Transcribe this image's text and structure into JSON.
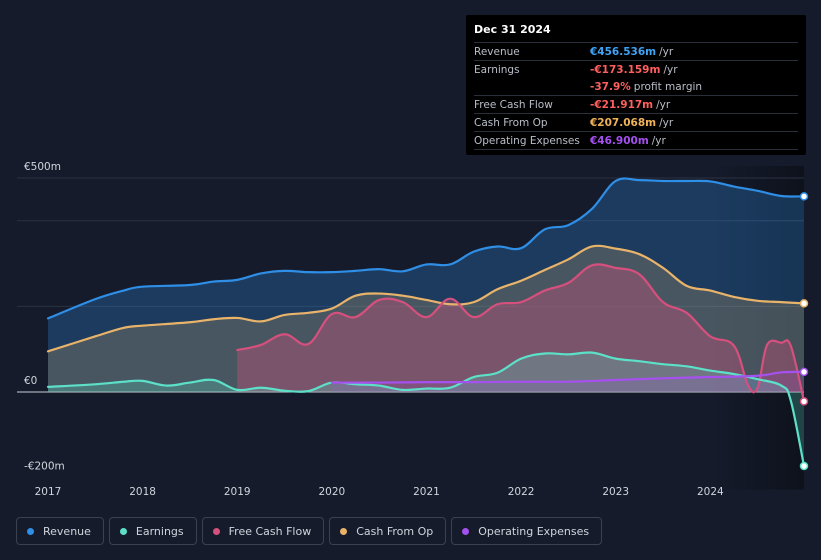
{
  "colors": {
    "revenue": "#2f8ee6",
    "earnings": "#5de0c8",
    "fcf": "#d6507e",
    "cfo": "#e9b46a",
    "opex": "#a550ef",
    "negative": "#ff5f5f"
  },
  "tooltip": {
    "date": "Dec 31 2024",
    "rows": [
      {
        "label": "Revenue",
        "value": "€456.536m",
        "unit": "/yr",
        "color": "#3fa3f5"
      },
      {
        "label": "Earnings",
        "value": "-€173.159m",
        "unit": "/yr",
        "color": "#ff5f5f"
      },
      {
        "label": "",
        "value": "-37.9%",
        "unit": "profit margin",
        "color": "#ff5f5f"
      },
      {
        "label": "Free Cash Flow",
        "value": "-€21.917m",
        "unit": "/yr",
        "color": "#ff5f5f"
      },
      {
        "label": "Cash From Op",
        "value": "€207.068m",
        "unit": "/yr",
        "color": "#f0b35a"
      },
      {
        "label": "Operating Expenses",
        "value": "€46.900m",
        "unit": "/yr",
        "color": "#a550ef"
      }
    ]
  },
  "legend": [
    {
      "label": "Revenue",
      "color": "#2f8ee6"
    },
    {
      "label": "Earnings",
      "color": "#5de0c8"
    },
    {
      "label": "Free Cash Flow",
      "color": "#d6507e"
    },
    {
      "label": "Cash From Op",
      "color": "#e9b46a"
    },
    {
      "label": "Operating Expenses",
      "color": "#a550ef"
    }
  ],
  "chart_data": {
    "type": "area",
    "y_tick_labels": [
      "€500m",
      "€0",
      "-€200m"
    ],
    "y_ticks": [
      500,
      0,
      -200
    ],
    "ylim": [
      -200,
      500
    ],
    "xlim": [
      2017,
      2024.99
    ],
    "x_tick_labels": [
      "2017",
      "2018",
      "2019",
      "2020",
      "2021",
      "2022",
      "2023",
      "2024"
    ],
    "x_ticks": [
      2017,
      2018,
      2019,
      2020,
      2021,
      2022,
      2023,
      2024
    ],
    "forecast_start": 2024,
    "series": [
      {
        "name": "Revenue",
        "key": "revenue",
        "x": [
          2017,
          2017.5,
          2017.8,
          2018,
          2018.5,
          2018.75,
          2019,
          2019.25,
          2019.5,
          2019.75,
          2020,
          2020.25,
          2020.5,
          2020.75,
          2021,
          2021.25,
          2021.5,
          2021.75,
          2022,
          2022.25,
          2022.5,
          2022.75,
          2023,
          2023.25,
          2023.5,
          2023.75,
          2024,
          2024.25,
          2024.5,
          2024.75,
          2024.99
        ],
        "values": [
          172,
          217,
          237,
          246,
          250,
          258,
          262,
          277,
          283,
          280,
          280,
          283,
          287,
          282,
          298,
          298,
          328,
          340,
          336,
          380,
          390,
          428,
          493,
          495,
          493,
          493,
          492,
          480,
          470,
          458,
          457
        ]
      },
      {
        "name": "Earnings",
        "key": "earnings",
        "x": [
          2017,
          2017.5,
          2017.8,
          2018,
          2018.25,
          2018.5,
          2018.75,
          2019,
          2019.25,
          2019.5,
          2019.75,
          2020,
          2020.25,
          2020.5,
          2020.75,
          2021,
          2021.25,
          2021.5,
          2021.75,
          2022,
          2022.25,
          2022.5,
          2022.75,
          2023,
          2023.25,
          2023.5,
          2023.75,
          2024,
          2024.25,
          2024.5,
          2024.75,
          2024.85,
          2024.99
        ],
        "values": [
          12,
          18,
          24,
          26,
          15,
          22,
          28,
          5,
          10,
          3,
          2,
          22,
          18,
          15,
          5,
          8,
          10,
          35,
          45,
          78,
          90,
          88,
          92,
          78,
          72,
          65,
          60,
          50,
          42,
          30,
          15,
          -20,
          -173
        ]
      },
      {
        "name": "Free Cash Flow",
        "key": "fcf",
        "x": [
          2019,
          2019.25,
          2019.5,
          2019.75,
          2020,
          2020.25,
          2020.5,
          2020.75,
          2021,
          2021.25,
          2021.5,
          2021.75,
          2022,
          2022.25,
          2022.5,
          2022.75,
          2023,
          2023.25,
          2023.5,
          2023.75,
          2024,
          2024.25,
          2024.4,
          2024.5,
          2024.6,
          2024.75,
          2024.85,
          2024.99
        ],
        "values": [
          98,
          110,
          135,
          112,
          182,
          175,
          215,
          210,
          175,
          218,
          175,
          205,
          210,
          237,
          255,
          296,
          290,
          275,
          210,
          185,
          130,
          108,
          15,
          10,
          110,
          115,
          108,
          -22
        ]
      },
      {
        "name": "Cash From Op",
        "key": "cfo",
        "x": [
          2017,
          2017.5,
          2017.8,
          2018,
          2018.5,
          2018.75,
          2019,
          2019.25,
          2019.5,
          2019.75,
          2020,
          2020.25,
          2020.5,
          2020.75,
          2021,
          2021.25,
          2021.5,
          2021.75,
          2022,
          2022.25,
          2022.5,
          2022.75,
          2023,
          2023.25,
          2023.5,
          2023.75,
          2024,
          2024.25,
          2024.5,
          2024.75,
          2024.99
        ],
        "values": [
          95,
          130,
          150,
          155,
          163,
          170,
          173,
          165,
          180,
          185,
          195,
          225,
          230,
          225,
          215,
          205,
          210,
          240,
          260,
          285,
          310,
          340,
          335,
          322,
          290,
          248,
          237,
          222,
          213,
          210,
          207
        ]
      },
      {
        "name": "Operating Expenses",
        "key": "opex",
        "x": [
          2020,
          2020.5,
          2021,
          2021.5,
          2022,
          2022.5,
          2023,
          2023.5,
          2024,
          2024.5,
          2024.75,
          2024.99
        ],
        "values": [
          22,
          22,
          23,
          23,
          24,
          24,
          28,
          32,
          35,
          38,
          46,
          47
        ]
      }
    ]
  }
}
